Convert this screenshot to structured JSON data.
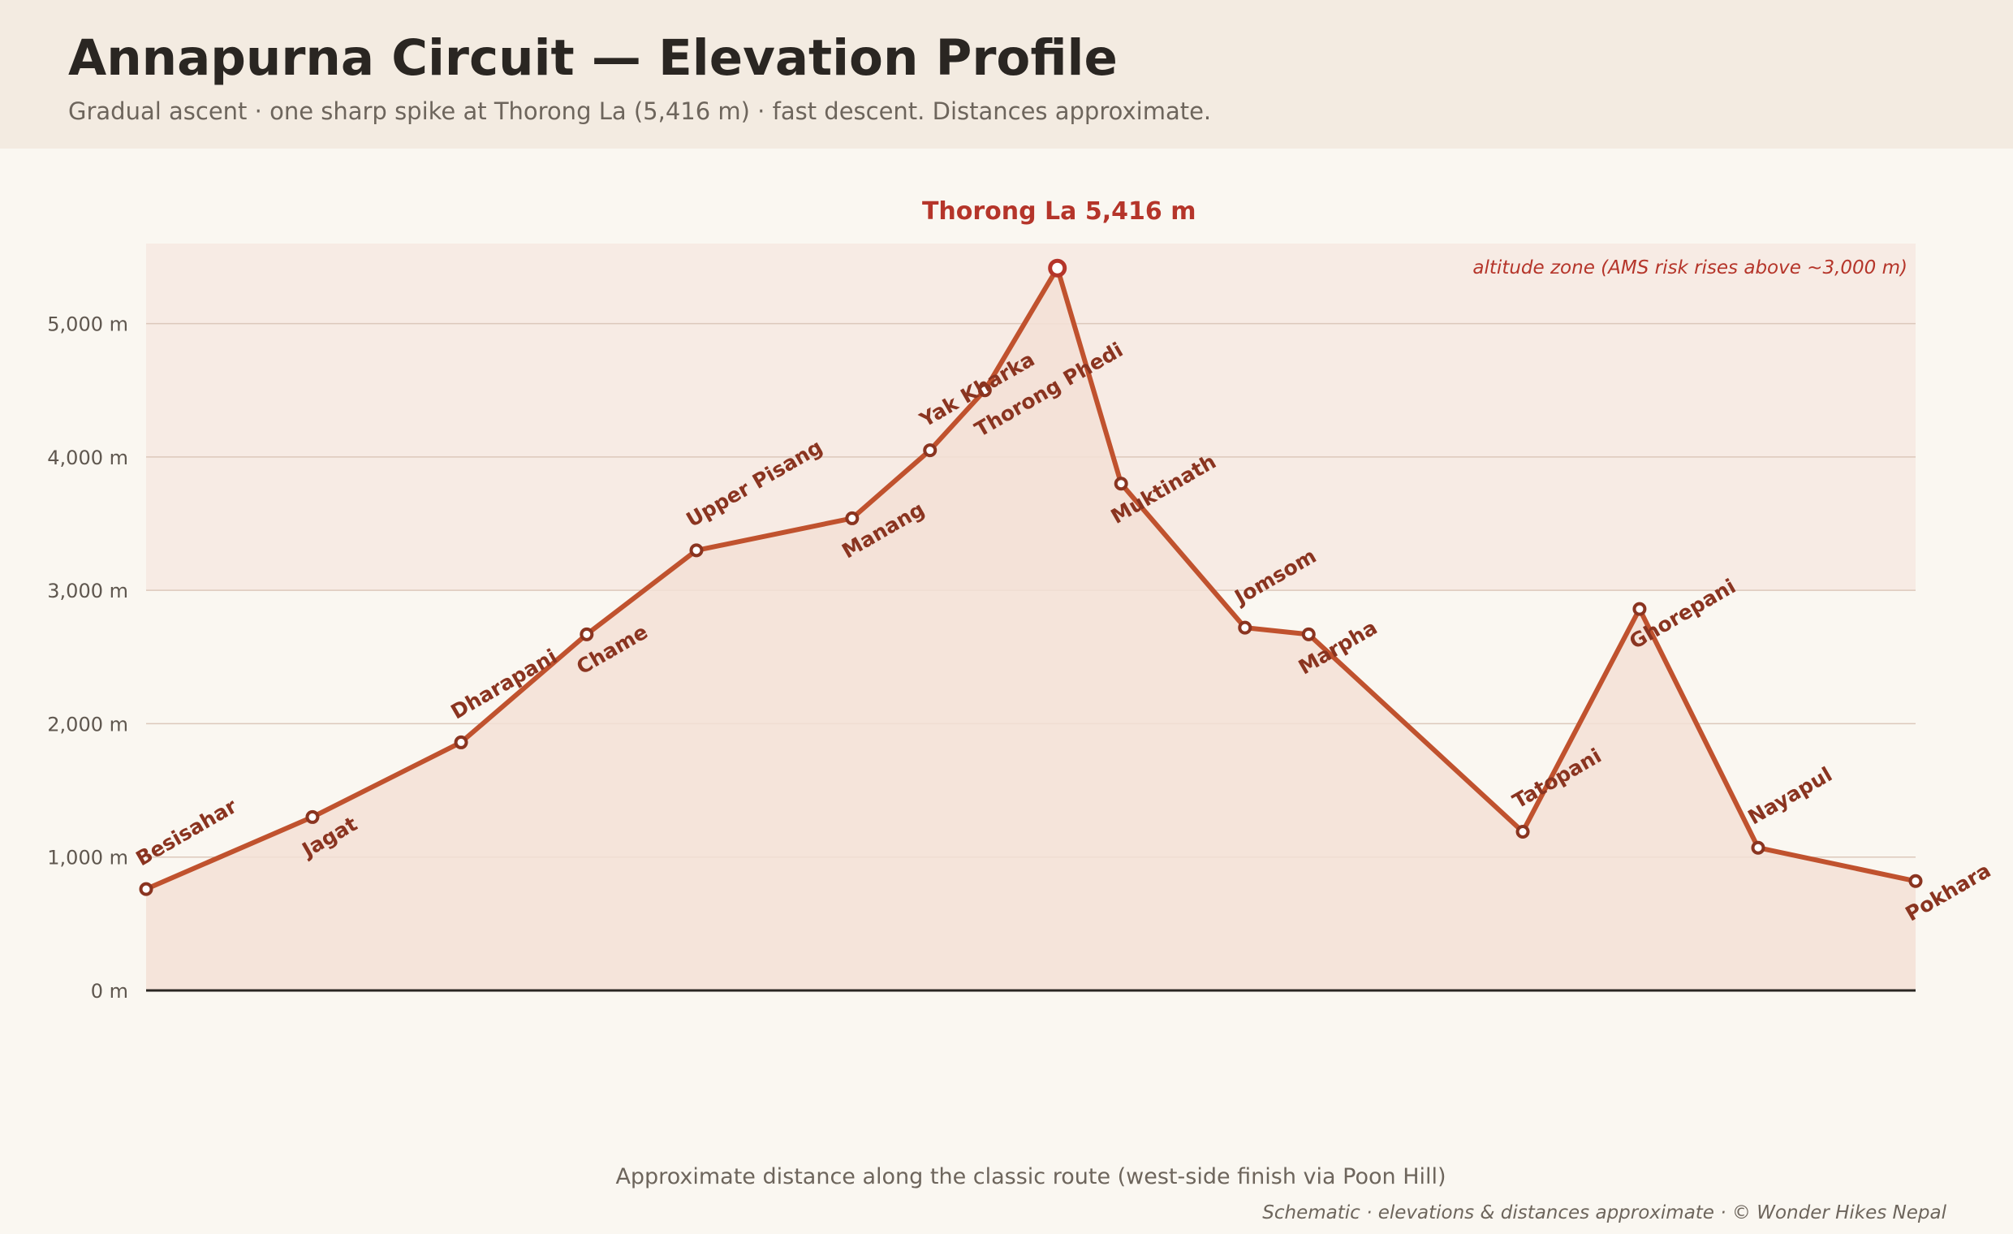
{
  "header": {
    "title": "Annapurna Circuit — Elevation Profile",
    "subtitle": "Gradual ascent · one sharp spike at Thorong La (5,416 m) · fast descent. Distances approximate."
  },
  "chart_data": {
    "type": "area",
    "xlabel": "Approximate distance along the classic route (west-side finish via Poon Hill)",
    "ylabel": "",
    "y_ticks": [
      "0 m",
      "1,000 m",
      "2,000 m",
      "3,000 m",
      "4,000 m",
      "5,000 m"
    ],
    "ylim": [
      0,
      5600
    ],
    "grid": true,
    "peak_label": "Thorong La 5,416 m",
    "zone": {
      "from": 3000,
      "label": "altitude zone (AMS risk rises above ~3,000 m)"
    },
    "series": [
      {
        "points": [
          {
            "name": "Besisahar",
            "x": 0,
            "y": 760
          },
          {
            "name": "Jagat",
            "x": 9.4,
            "y": 1300
          },
          {
            "name": "Dharapani",
            "x": 17.8,
            "y": 1860
          },
          {
            "name": "Chame",
            "x": 24.9,
            "y": 2670
          },
          {
            "name": "Upper Pisang",
            "x": 31.1,
            "y": 3300
          },
          {
            "name": "Manang",
            "x": 39.9,
            "y": 3540
          },
          {
            "name": "Yak Kharka",
            "x": 44.3,
            "y": 4050
          },
          {
            "name": "Thorong Phedi",
            "x": 47.4,
            "y": 4500
          },
          {
            "name": "Thorong La",
            "x": 51.5,
            "y": 5416
          },
          {
            "name": "Muktinath",
            "x": 55.1,
            "y": 3800
          },
          {
            "name": "Jomsom",
            "x": 62.1,
            "y": 2720
          },
          {
            "name": "Marpha",
            "x": 65.7,
            "y": 2670
          },
          {
            "name": "Tatopani",
            "x": 77.8,
            "y": 1190
          },
          {
            "name": "Ghorepani",
            "x": 84.4,
            "y": 2860
          },
          {
            "name": "Nayapul",
            "x": 91.1,
            "y": 1070
          },
          {
            "name": "Pokhara",
            "x": 100,
            "y": 820
          }
        ]
      }
    ],
    "colors": {
      "line": "#c0522e",
      "fill": "#f3e0d6",
      "label": "#8a3420",
      "peak": "#b5352a",
      "zone": "#f7ebe4",
      "grid": "#dcc8bb"
    },
    "credit": "Schematic · elevations & distances approximate · © Wonder Hikes Nepal"
  }
}
